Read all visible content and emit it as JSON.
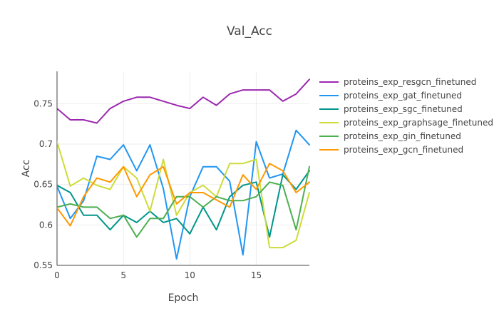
{
  "chart_data": {
    "type": "line",
    "title": "Val_Acc",
    "xlabel": "Epoch",
    "ylabel": "Acc",
    "xlim": [
      0,
      19
    ],
    "ylim": [
      0.55,
      0.79
    ],
    "xticks": [
      0,
      5,
      10,
      15
    ],
    "yticks": [
      0.55,
      0.6,
      0.65,
      0.7,
      0.75
    ],
    "xtick_labels": [
      "0",
      "5",
      "10",
      "15"
    ],
    "ytick_labels": [
      "0.55",
      "0.6",
      "0.65",
      "0.7",
      "0.75"
    ],
    "grid": true,
    "legend_position": "right",
    "x": [
      0,
      1,
      2,
      3,
      4,
      5,
      6,
      7,
      8,
      9,
      10,
      11,
      12,
      13,
      14,
      15,
      16,
      17,
      18,
      19
    ],
    "series": [
      {
        "name": "proteins_exp_resgcn_finetuned",
        "color": "#9c27b0",
        "values": [
          0.744,
          0.73,
          0.73,
          0.726,
          0.744,
          0.753,
          0.758,
          0.758,
          0.753,
          0.748,
          0.744,
          0.758,
          0.748,
          0.762,
          0.767,
          0.767,
          0.767,
          0.753,
          0.762,
          0.78
        ]
      },
      {
        "name": "proteins_exp_gat_finetuned",
        "color": "#2196f3",
        "values": [
          0.648,
          0.608,
          0.63,
          0.685,
          0.681,
          0.699,
          0.667,
          0.699,
          0.645,
          0.558,
          0.635,
          0.672,
          0.672,
          0.654,
          0.563,
          0.703,
          0.658,
          0.663,
          0.717,
          0.699
        ]
      },
      {
        "name": "proteins_exp_sgc_finetuned",
        "color": "#009688",
        "values": [
          0.649,
          0.64,
          0.612,
          0.612,
          0.594,
          0.612,
          0.603,
          0.617,
          0.603,
          0.608,
          0.589,
          0.622,
          0.594,
          0.635,
          0.649,
          0.653,
          0.585,
          0.662,
          0.644,
          0.667
        ]
      },
      {
        "name": "proteins_exp_graphsage_finetuned",
        "color": "#cddc39",
        "values": [
          0.703,
          0.648,
          0.658,
          0.649,
          0.644,
          0.672,
          0.658,
          0.617,
          0.681,
          0.612,
          0.64,
          0.649,
          0.635,
          0.676,
          0.676,
          0.681,
          0.572,
          0.572,
          0.581,
          0.64
        ]
      },
      {
        "name": "proteins_exp_gin_finetuned",
        "color": "#4caf50",
        "values": [
          0.622,
          0.626,
          0.622,
          0.622,
          0.608,
          0.612,
          0.585,
          0.608,
          0.608,
          0.635,
          0.635,
          0.622,
          0.635,
          0.63,
          0.63,
          0.635,
          0.653,
          0.649,
          0.594,
          0.672
        ]
      },
      {
        "name": "proteins_exp_gcn_finetuned",
        "color": "#ff9800",
        "values": [
          0.621,
          0.599,
          0.635,
          0.658,
          0.653,
          0.672,
          0.635,
          0.662,
          0.672,
          0.626,
          0.64,
          0.64,
          0.631,
          0.622,
          0.662,
          0.644,
          0.676,
          0.667,
          0.64,
          0.653
        ]
      }
    ]
  }
}
